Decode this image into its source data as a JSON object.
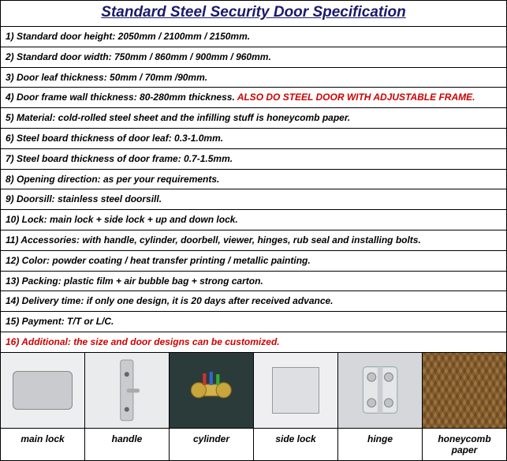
{
  "title": "Standard Steel Security Door Specification",
  "rows": [
    {
      "text": "1) Standard door height: 2050mm / 2100mm / 2150mm."
    },
    {
      "text": "2) Standard door width: 750mm / 860mm / 900mm / 960mm."
    },
    {
      "text": "3) Door leaf thickness: 50mm / 70mm /90mm."
    },
    {
      "text": "4) Door frame wall thickness: 80-280mm thickness.",
      "highlight": "ALSO DO STEEL DOOR WITH ADJUSTABLE FRAME."
    },
    {
      "text": "5) Material: cold-rolled steel sheet and the infilling stuff is honeycomb paper."
    },
    {
      "text": "6) Steel board thickness of door leaf: 0.3-1.0mm."
    },
    {
      "text": "7) Steel board thickness of door frame: 0.7-1.5mm."
    },
    {
      "text": "8) Opening direction: as per your requirements."
    },
    {
      "text": "9) Doorsill: stainless steel doorsill."
    },
    {
      "text": "10) Lock: main lock + side lock + up and down lock."
    },
    {
      "text": "11) Accessories: with handle, cylinder, doorbell, viewer, hinges, rub seal and installing bolts."
    },
    {
      "text": "12) Color: powder coating / heat transfer printing / metallic painting."
    },
    {
      "text": "13) Packing: plastic film + air bubble bag + strong carton."
    },
    {
      "text": "14) Delivery  time: if only one design, it is 20 days after received advance."
    },
    {
      "text": "15) Payment: T/T or L/C."
    },
    {
      "text": "16) Additional: the size and door designs can be customized.",
      "allRed": true
    }
  ],
  "images": [
    {
      "name": "main-lock",
      "label": "main lock"
    },
    {
      "name": "handle",
      "label": "handle"
    },
    {
      "name": "cylinder",
      "label": "cylinder"
    },
    {
      "name": "side-lock",
      "label": "side lock"
    },
    {
      "name": "hinge",
      "label": "hinge"
    },
    {
      "name": "honeycomb-paper",
      "label": "honeycomb paper"
    }
  ],
  "colors": {
    "title": "#1a1a6b",
    "highlight": "#d00000",
    "border": "#000000",
    "background": "#ffffff"
  }
}
